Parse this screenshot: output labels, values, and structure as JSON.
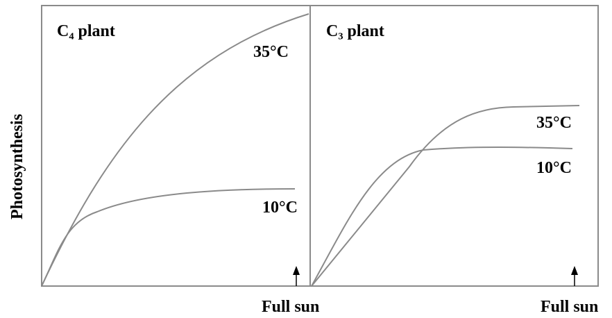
{
  "y_axis_label": "Photosynthesis",
  "panels": [
    {
      "title": "C₄ plant",
      "curve_labels": [
        "35°C",
        "10°C"
      ],
      "x_label": "Full sun"
    },
    {
      "title": "C₃ plant",
      "curve_labels": [
        "35°C",
        "10°C"
      ],
      "x_label": "Full sun"
    }
  ]
}
